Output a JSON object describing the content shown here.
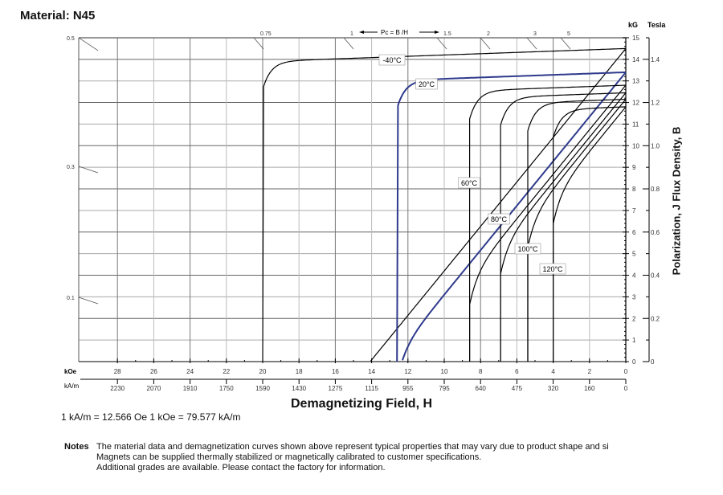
{
  "chart_data": {
    "type": "line",
    "title": "Material: N45",
    "xlabel": "Demagnetizing Field, H",
    "ylabel": "Polarization,  J      Flux Density,  B",
    "x_axis_primary": {
      "unit": "kOe",
      "range": [
        30,
        0
      ],
      "ticks": [
        28,
        26,
        24,
        22,
        20,
        18,
        16,
        14,
        12,
        10,
        8,
        6,
        4,
        2,
        0
      ]
    },
    "x_axis_secondary": {
      "unit": "kA/m",
      "ticks": [
        "2230",
        "2070",
        "1910",
        "1750",
        "1590",
        "1430",
        "1275",
        "1115",
        "955",
        "795",
        "640",
        "475",
        "320",
        "160",
        "0"
      ]
    },
    "y_axis_primary": {
      "unit": "kG",
      "range": [
        0,
        15
      ],
      "ticks": [
        0,
        1,
        2,
        3,
        4,
        5,
        6,
        7,
        8,
        9,
        10,
        11,
        12,
        13,
        14,
        15
      ]
    },
    "y_axis_secondary": {
      "unit": "Tesla",
      "ticks": [
        "0",
        "0.2",
        "0.4",
        "0.6",
        "0.8",
        "1.0",
        "1.2",
        "1.4"
      ]
    },
    "grid": true,
    "load_lines": {
      "label": "Pc = B /H",
      "top_labels": [
        "0.75",
        "1",
        "1.5",
        "2",
        "3",
        "5"
      ],
      "left_labels": [
        "0.5",
        "0.3",
        "0.1"
      ]
    },
    "series": [
      {
        "name": "-40°C",
        "color": "#000000",
        "br_kG": 14.5,
        "hcj_kOe": 20.0
      },
      {
        "name": "20°C",
        "color": "#2e3a8c",
        "br_kG": 13.4,
        "hcj_kOe": 12.6
      },
      {
        "name": "60°C",
        "color": "#000000",
        "br_kG": 12.8,
        "hcj_kOe": 8.6
      },
      {
        "name": "80°C",
        "color": "#000000",
        "br_kG": 12.45,
        "hcj_kOe": 6.9
      },
      {
        "name": "100°C",
        "color": "#000000",
        "br_kG": 12.15,
        "hcj_kOe": 5.4
      },
      {
        "name": "120°C",
        "color": "#000000",
        "br_kG": 11.8,
        "hcj_kOe": 4.0
      }
    ]
  },
  "conversion": "1 kA/m = 12.566 Oe     1 kOe = 79.577 kA/m",
  "notes": {
    "heading": "Notes",
    "lines": [
      "The material data and demagnetization curves shown above represent typical properties that may vary due to product shape and si",
      "Magnets can be supplied thermally stabilized or magnetically calibrated to customer specifications.",
      "Additional grades are available.  Please contact the factory for information."
    ]
  }
}
